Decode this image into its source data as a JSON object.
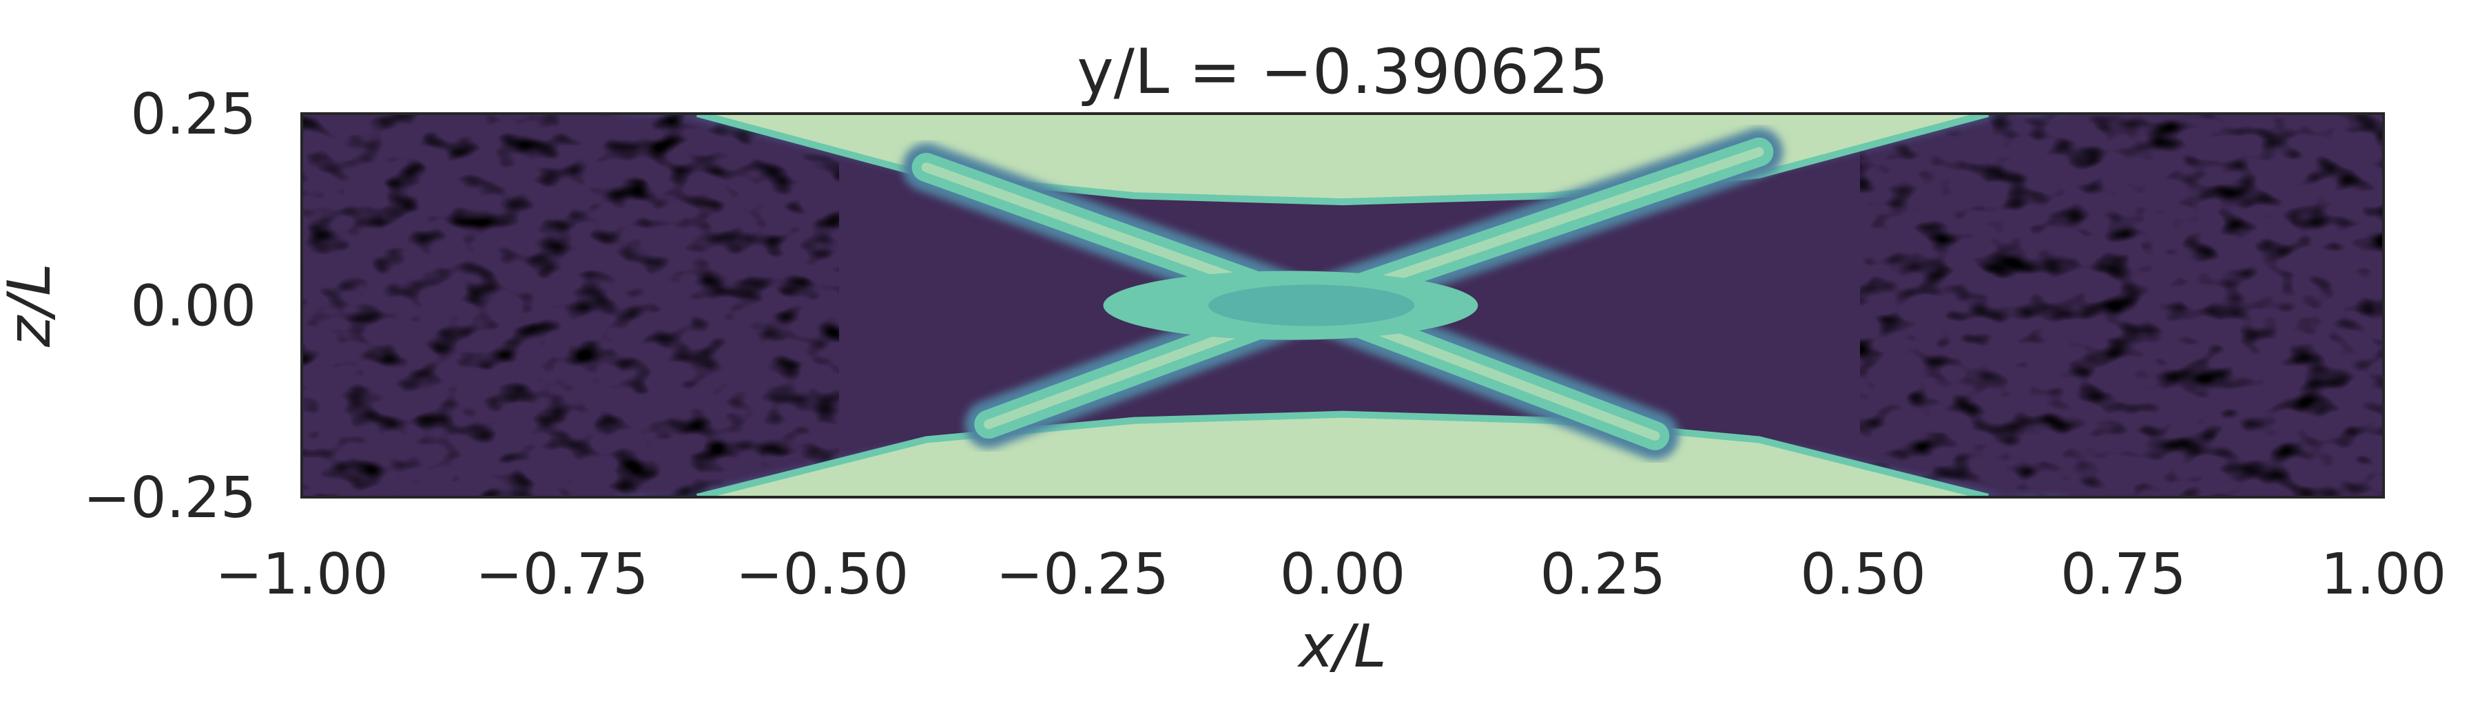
{
  "chart_data": {
    "type": "heatmap",
    "title": "y/L = −0.390625",
    "xlabel": "x/L",
    "ylabel": "z/L",
    "xlim": [
      -1.0,
      1.0
    ],
    "ylim": [
      -0.25,
      0.25
    ],
    "xticks": [
      -1.0,
      -0.75,
      -0.5,
      -0.25,
      0.0,
      0.25,
      0.5,
      0.75,
      1.0
    ],
    "xtick_labels": [
      "−1.00",
      "−0.75",
      "−0.50",
      "−0.25",
      "0.00",
      "0.25",
      "0.50",
      "0.75",
      "1.00"
    ],
    "yticks": [
      0.25,
      0.0,
      -0.25
    ],
    "ytick_labels": [
      "0.25",
      "0.00",
      "−0.25"
    ],
    "grid": false,
    "colormap": [
      "#000000",
      "#2d1e3e",
      "#412b57",
      "#4a5a8a",
      "#4f82a0",
      "#5ab3a8",
      "#6cc9ad",
      "#a5d9b4",
      "#c0dfb6"
    ],
    "background_level_color": "#412b57",
    "jet_level_color": "#c0dfb6",
    "core_level_color": "#5ab3a8",
    "frame_color": "#262626",
    "features": {
      "upper_band_top": [
        [
          -0.62,
          0.25
        ],
        [
          -0.4,
          0.17
        ],
        [
          -0.2,
          0.143
        ],
        [
          0.0,
          0.135
        ],
        [
          0.2,
          0.143
        ],
        [
          0.4,
          0.17
        ],
        [
          0.62,
          0.25
        ]
      ],
      "lower_band_bottom": [
        [
          -0.62,
          -0.25
        ],
        [
          -0.4,
          -0.175
        ],
        [
          -0.2,
          -0.15
        ],
        [
          0.0,
          -0.142
        ],
        [
          0.2,
          -0.15
        ],
        [
          0.4,
          -0.175
        ],
        [
          0.62,
          -0.25
        ]
      ],
      "cross_arms": [
        [
          [
            -0.4,
            0.18
          ],
          [
            0.0,
            -0.015
          ],
          [
            0.3,
            -0.17
          ]
        ],
        [
          [
            -0.34,
            -0.155
          ],
          [
            0.0,
            0.015
          ],
          [
            0.4,
            0.2
          ]
        ]
      ],
      "core": {
        "x": -0.05,
        "z": 0.0,
        "rx": 0.18,
        "rz": 0.045
      }
    }
  }
}
